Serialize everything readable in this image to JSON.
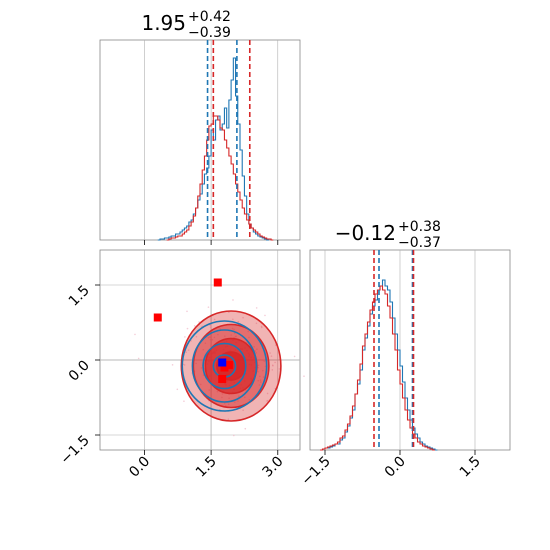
{
  "chart_data": {
    "type": "corner",
    "colors": {
      "blue": "#1f77b4",
      "red": "#d62728",
      "marker_red": "#ff0000",
      "marker_blue": "#0000ff",
      "grid": "#b0b0b0",
      "fill_red": "#e88a8c",
      "dark_red": "#c00000"
    },
    "panels": [
      {
        "id": "hist-param1",
        "type": "histogram",
        "title": {
          "median": "1.95",
          "plus": "+0.42",
          "minus": "−0.39"
        },
        "xlim": [
          -1.0,
          3.5
        ],
        "ylim": [
          0,
          1
        ],
        "x_ticks": [
          0.0,
          1.5,
          3.0
        ],
        "quantile_lines": {
          "blue": [
            1.42,
            2.08
          ],
          "red": [
            1.55,
            2.37
          ]
        },
        "series": [
          {
            "name": "",
            "color": "#1f77b4",
            "bins_start": 0.3,
            "bin_width": 0.05,
            "values": [
              0,
              0.005,
              0.005,
              0.01,
              0.01,
              0.015,
              0.02,
              0.02,
              0.03,
              0.03,
              0.04,
              0.05,
              0.06,
              0.07,
              0.09,
              0.1,
              0.13,
              0.16,
              0.2,
              0.23,
              0.28,
              0.33,
              0.36,
              0.42,
              0.55,
              0.5,
              0.6,
              0.62,
              0.55,
              0.58,
              0.66,
              0.56,
              0.7,
              0.8,
              0.91,
              0.72,
              0.58,
              0.45,
              0.32,
              0.22,
              0.13,
              0.08,
              0.06,
              0.04,
              0.03,
              0.02,
              0.015,
              0.01,
              0.005,
              0
            ]
          },
          {
            "name": "",
            "color": "#d62728",
            "bins_start": 0.5,
            "bin_width": 0.05,
            "values": [
              0,
              0.005,
              0.01,
              0.01,
              0.015,
              0.02,
              0.02,
              0.03,
              0.04,
              0.05,
              0.07,
              0.09,
              0.12,
              0.16,
              0.22,
              0.28,
              0.35,
              0.42,
              0.5,
              0.57,
              0.58,
              0.62,
              0.62,
              0.6,
              0.56,
              0.55,
              0.5,
              0.46,
              0.42,
              0.38,
              0.33,
              0.28,
              0.24,
              0.2,
              0.16,
              0.13,
              0.1,
              0.08,
              0.06,
              0.05,
              0.04,
              0.03,
              0.02,
              0.015,
              0.01,
              0.005,
              0.005,
              0
            ]
          }
        ]
      },
      {
        "id": "hist-param2",
        "type": "histogram",
        "title": {
          "median": "−0.12",
          "plus": "+0.38",
          "minus": "−0.37"
        },
        "xlim": [
          -1.8,
          2.2
        ],
        "ylim": [
          0,
          1
        ],
        "x_ticks": [
          -1.5,
          0.0,
          1.5
        ],
        "x_tick_labels": [
          "−1.5",
          "0.0",
          "1.5"
        ],
        "quantile_lines": {
          "blue": [
            -0.42,
            0.25
          ],
          "red": [
            -0.52,
            0.27
          ]
        },
        "series": [
          {
            "name": "",
            "color": "#1f77b4",
            "bins_start": -1.6,
            "bin_width": 0.05,
            "values": [
              0,
              0.005,
              0.01,
              0.01,
              0.015,
              0.02,
              0.03,
              0.03,
              0.05,
              0.06,
              0.09,
              0.12,
              0.16,
              0.2,
              0.28,
              0.33,
              0.4,
              0.5,
              0.56,
              0.62,
              0.68,
              0.72,
              0.75,
              0.8,
              0.82,
              0.85,
              0.82,
              0.8,
              0.74,
              0.66,
              0.58,
              0.5,
              0.42,
              0.34,
              0.26,
              0.2,
              0.15,
              0.11,
              0.08,
              0.06,
              0.04,
              0.03,
              0.02,
              0.015,
              0.01,
              0.005,
              0
            ]
          },
          {
            "name": "",
            "color": "#d62728",
            "bins_start": -1.6,
            "bin_width": 0.05,
            "values": [
              0,
              0.005,
              0.01,
              0.015,
              0.02,
              0.025,
              0.03,
              0.04,
              0.06,
              0.07,
              0.1,
              0.13,
              0.17,
              0.22,
              0.28,
              0.35,
              0.43,
              0.52,
              0.58,
              0.64,
              0.7,
              0.74,
              0.78,
              0.8,
              0.82,
              0.8,
              0.78,
              0.72,
              0.66,
              0.58,
              0.5,
              0.4,
              0.33,
              0.26,
              0.2,
              0.15,
              0.11,
              0.08,
              0.06,
              0.04,
              0.03,
              0.02,
              0.015,
              0.01,
              0.005,
              0
            ]
          }
        ]
      },
      {
        "id": "scatter-2d",
        "type": "scatter",
        "xlim": [
          -1.0,
          3.5
        ],
        "ylim": [
          -1.8,
          2.2
        ],
        "x_ticks": [
          0.0,
          1.5,
          3.0
        ],
        "y_ticks": [
          -1.5,
          0.0,
          1.5
        ],
        "y_tick_labels": [
          "−1.5",
          "0.0",
          "1.5"
        ],
        "vline": 1.5,
        "hline": 0.0,
        "red_markers": [
          [
            0.3,
            0.85
          ],
          [
            1.65,
            1.55
          ],
          [
            1.75,
            -0.38
          ],
          [
            1.9,
            -0.1
          ],
          [
            1.8,
            -0.15
          ]
        ],
        "blue_markers": [
          [
            1.75,
            -0.05
          ]
        ],
        "red_contours": [
          {
            "cx": 1.95,
            "cy": -0.12,
            "rx": 0.32,
            "ry": 0.28
          },
          {
            "cx": 1.95,
            "cy": -0.12,
            "rx": 0.58,
            "ry": 0.55
          },
          {
            "cx": 1.95,
            "cy": -0.12,
            "rx": 0.85,
            "ry": 0.83
          },
          {
            "cx": 1.95,
            "cy": -0.12,
            "rx": 1.12,
            "ry": 1.1
          }
        ],
        "blue_contours": [
          {
            "cx": 1.8,
            "cy": -0.12,
            "rx": 0.25,
            "ry": 0.22
          },
          {
            "cx": 1.8,
            "cy": -0.12,
            "rx": 0.48,
            "ry": 0.45
          },
          {
            "cx": 1.8,
            "cy": -0.12,
            "rx": 0.72,
            "ry": 0.72
          },
          {
            "cx": 1.8,
            "cy": -0.12,
            "rx": 0.95,
            "ry": 0.9
          }
        ]
      }
    ]
  }
}
